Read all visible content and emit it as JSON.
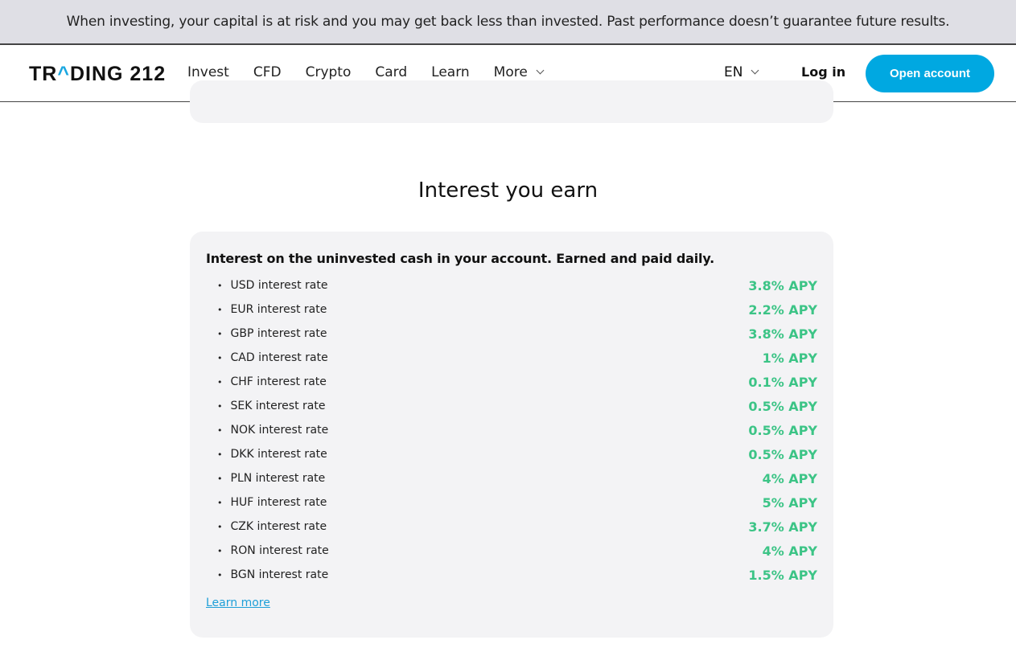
{
  "banner": {
    "text": "When investing, your capital is at risk and you may get back less than invested. Past performance doesn’t guarantee future results."
  },
  "header": {
    "logo_pre": "TR",
    "logo_caret": "^",
    "logo_post": "DING 212",
    "nav": [
      "Invest",
      "CFD",
      "Crypto",
      "Card",
      "Learn",
      "More"
    ],
    "lang": "EN",
    "login": "Log in",
    "open_account": "Open account"
  },
  "section": {
    "title": "Interest you earn",
    "lead": "Interest on the uninvested cash in your account. Earned and paid daily.",
    "rates": [
      {
        "label": "USD interest rate",
        "value": "3.8% APY"
      },
      {
        "label": "EUR interest rate",
        "value": "2.2% APY"
      },
      {
        "label": "GBP interest rate",
        "value": "3.8% APY"
      },
      {
        "label": "CAD interest rate",
        "value": "1% APY"
      },
      {
        "label": "CHF interest rate",
        "value": "0.1% APY"
      },
      {
        "label": "SEK interest rate",
        "value": "0.5% APY"
      },
      {
        "label": "NOK interest rate",
        "value": "0.5% APY"
      },
      {
        "label": "DKK interest rate",
        "value": "0.5% APY"
      },
      {
        "label": "PLN interest rate",
        "value": "4% APY"
      },
      {
        "label": "HUF interest rate",
        "value": "5% APY"
      },
      {
        "label": "CZK interest rate",
        "value": "3.7% APY"
      },
      {
        "label": "RON interest rate",
        "value": "4% APY"
      },
      {
        "label": "BGN interest rate",
        "value": "1.5% APY"
      }
    ],
    "learn_more": "Learn more"
  },
  "colors": {
    "accent": "#00a8e1",
    "rate": "#3cc486"
  }
}
